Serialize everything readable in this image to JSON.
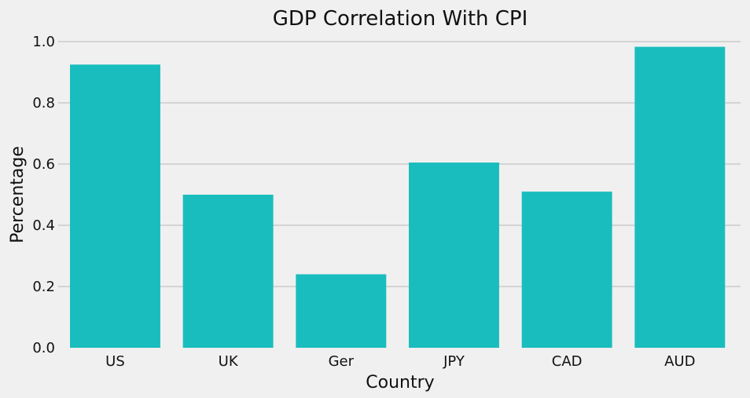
{
  "chart_data": {
    "type": "bar",
    "title": "GDP Correlation With CPI",
    "xlabel": "Country",
    "ylabel": "Percentage",
    "categories": [
      "US",
      "UK",
      "Ger",
      "JPY",
      "CAD",
      "AUD"
    ],
    "values": [
      0.925,
      0.5,
      0.24,
      0.605,
      0.51,
      0.983
    ],
    "ylim": [
      0,
      1.0
    ],
    "yticks": [
      "0.0",
      "0.2",
      "0.4",
      "0.6",
      "0.8",
      "1.0"
    ],
    "grid": "horizontal",
    "colors": {
      "bar": "#1abdbd",
      "background": "#f0f0f0",
      "grid": "#cbcbcb"
    }
  }
}
